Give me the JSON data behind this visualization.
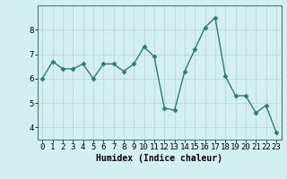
{
  "x": [
    0,
    1,
    2,
    3,
    4,
    5,
    6,
    7,
    8,
    9,
    10,
    11,
    12,
    13,
    14,
    15,
    16,
    17,
    18,
    19,
    20,
    21,
    22,
    23
  ],
  "y": [
    6.0,
    6.7,
    6.4,
    6.4,
    6.6,
    6.0,
    6.6,
    6.6,
    6.3,
    6.6,
    7.3,
    6.9,
    4.8,
    4.7,
    6.3,
    7.2,
    8.1,
    8.5,
    6.1,
    5.3,
    5.3,
    4.6,
    4.9,
    3.8
  ],
  "line_color": "#2d7d6e",
  "marker": "D",
  "marker_size": 2.5,
  "bg_color": "#d4efef",
  "grid_color": "#b8d8d8",
  "axis_color": "#4a7a7a",
  "xlabel": "Humidex (Indice chaleur)",
  "xlabel_fontsize": 7,
  "tick_fontsize": 6.5,
  "ylim": [
    3.5,
    9.0
  ],
  "xlim": [
    -0.5,
    23.5
  ],
  "yticks": [
    4,
    5,
    6,
    7,
    8
  ],
  "xticks": [
    0,
    1,
    2,
    3,
    4,
    5,
    6,
    7,
    8,
    9,
    10,
    11,
    12,
    13,
    14,
    15,
    16,
    17,
    18,
    19,
    20,
    21,
    22,
    23
  ]
}
